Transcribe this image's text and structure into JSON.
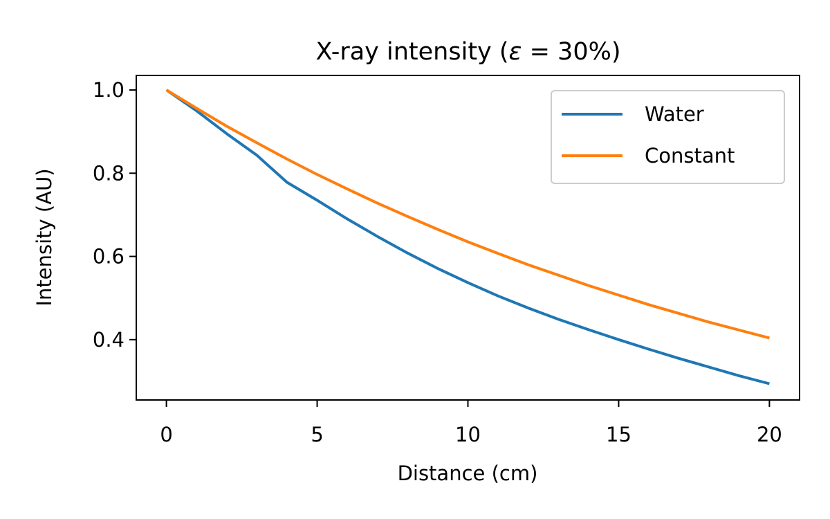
{
  "chart_data": {
    "type": "line",
    "title_main": "X-ray intensity (",
    "title_symbol": "ε",
    "title_rest": " = 30%)",
    "xlabel": "Distance (cm)",
    "ylabel": "Intensity (AU)",
    "xlim": [
      -1,
      21
    ],
    "ylim": [
      0.255,
      1.035
    ],
    "xticks": [
      0,
      5,
      10,
      15,
      20
    ],
    "xtick_labels": [
      "0",
      "5",
      "10",
      "15",
      "20"
    ],
    "yticks": [
      0.4,
      0.6,
      0.8,
      1.0
    ],
    "ytick_labels": [
      "0.4",
      "0.6",
      "0.8",
      "1.0"
    ],
    "legend_position": "top-right",
    "grid": false,
    "series": [
      {
        "name": "Water",
        "color": "#1f77b4",
        "x": [
          0,
          1,
          2,
          3,
          4,
          5,
          6,
          7,
          8,
          9,
          10,
          11,
          12,
          13,
          14,
          15,
          16,
          17,
          18,
          19,
          20
        ],
        "y": [
          1.0,
          0.95,
          0.895,
          0.843,
          0.778,
          0.735,
          0.69,
          0.648,
          0.608,
          0.571,
          0.537,
          0.505,
          0.476,
          0.449,
          0.424,
          0.4,
          0.377,
          0.355,
          0.334,
          0.313,
          0.294
        ]
      },
      {
        "name": "Constant",
        "color": "#ff7f0e",
        "x": [
          0,
          1,
          2,
          3,
          4,
          5,
          6,
          7,
          8,
          9,
          10,
          11,
          12,
          13,
          14,
          15,
          16,
          17,
          18,
          19,
          20
        ],
        "y": [
          1.0,
          0.956,
          0.913,
          0.873,
          0.834,
          0.797,
          0.762,
          0.728,
          0.696,
          0.665,
          0.635,
          0.607,
          0.58,
          0.555,
          0.53,
          0.507,
          0.484,
          0.463,
          0.442,
          0.423,
          0.404
        ]
      }
    ]
  }
}
